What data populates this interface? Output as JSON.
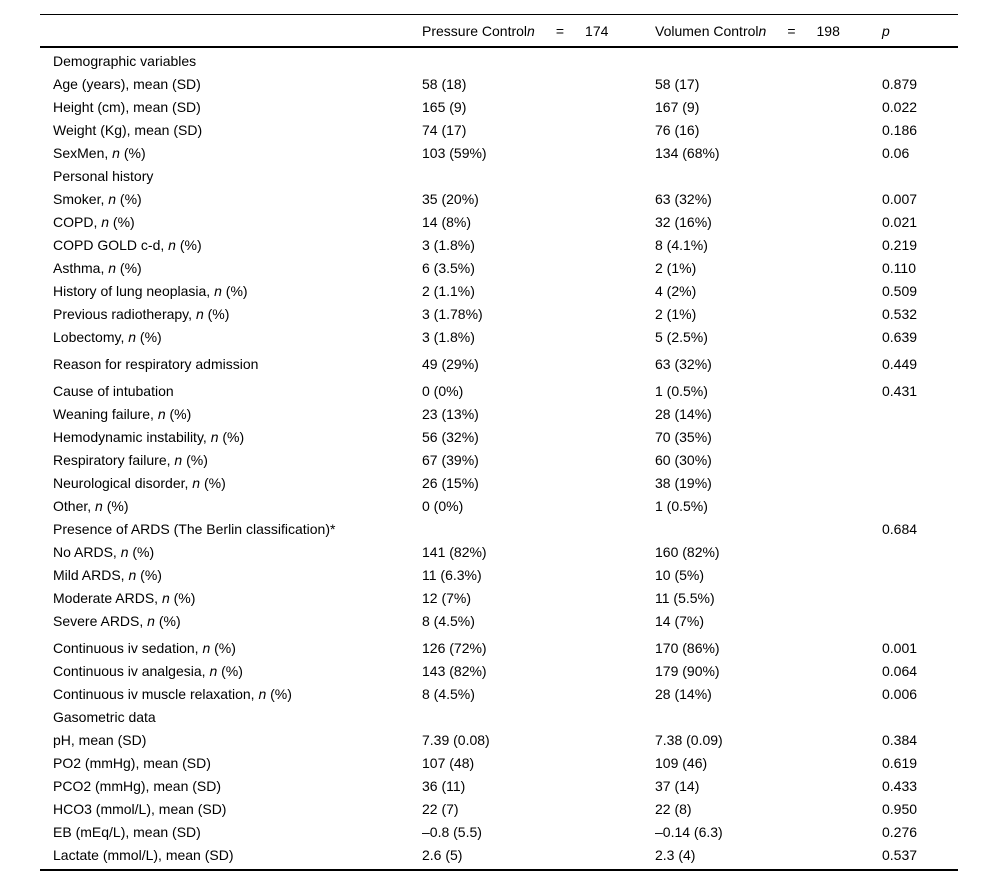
{
  "colors": {
    "background": "#ffffff",
    "text": "#000000",
    "rule": "#000000"
  },
  "table": {
    "header": {
      "pressure": {
        "name": "Pressure Control",
        "n": "n",
        "eq": "=",
        "count": "174"
      },
      "volumen": {
        "name": "Volumen Control",
        "n": "n",
        "eq": "=",
        "count": "198"
      },
      "p": "p"
    },
    "rows": [
      {
        "section": true,
        "label": "Demographic variables"
      },
      {
        "label": "Age (years), mean (SD)",
        "c1": "58 (18)",
        "c2": "58 (17)",
        "p": "0.879"
      },
      {
        "label": "Height (cm), mean (SD)",
        "c1": "165 (9)",
        "c2": "167 (9)",
        "p": "0.022"
      },
      {
        "label": "Weight (Kg), mean (SD)",
        "c1": "74 (17)",
        "c2": "76 (16)",
        "p": "0.186"
      },
      {
        "label": "SexMen, ",
        "label_it": "n",
        "label_post": " (%)",
        "c1": "103 (59%)",
        "c2": "134 (68%)",
        "p": "0.06"
      },
      {
        "section": true,
        "label": "Personal history"
      },
      {
        "label": "Smoker, ",
        "label_it": "n",
        "label_post": " (%)",
        "c1": "35 (20%)",
        "c2": "63 (32%)",
        "p": "0.007"
      },
      {
        "label": "COPD, ",
        "label_it": "n",
        "label_post": " (%)",
        "c1": "14 (8%)",
        "c2": "32 (16%)",
        "p": "0.021"
      },
      {
        "label": "COPD GOLD c-d, ",
        "label_it": "n",
        "label_post": " (%)",
        "c1": "3 (1.8%)",
        "c2": "8 (4.1%)",
        "p": "0.219"
      },
      {
        "label": "Asthma, ",
        "label_it": "n",
        "label_post": " (%)",
        "c1": "6 (3.5%)",
        "c2": "2 (1%)",
        "p": "0.110"
      },
      {
        "label": "History of lung neoplasia, ",
        "label_it": "n",
        "label_post": " (%)",
        "c1": "2 (1.1%)",
        "c2": "4 (2%)",
        "p": "0.509"
      },
      {
        "label": "Previous radiotherapy, ",
        "label_it": "n",
        "label_post": " (%)",
        "c1": "3 (1.78%)",
        "c2": "2 (1%)",
        "p": "0.532"
      },
      {
        "label": "Lobectomy, ",
        "label_it": "n",
        "label_post": " (%)",
        "c1": "3 (1.8%)",
        "c2": "5 (2.5%)",
        "p": "0.639"
      },
      {
        "gap": true,
        "label": "Reason for respiratory admission",
        "c1": "49 (29%)",
        "c2": "63 (32%)",
        "p": "0.449"
      },
      {
        "gap": true,
        "label": "Cause of intubation",
        "c1": "0 (0%)",
        "c2": "1 (0.5%)",
        "p": "0.431"
      },
      {
        "label": "Weaning failure, ",
        "label_it": "n",
        "label_post": " (%)",
        "c1": "23 (13%)",
        "c2": "28 (14%)"
      },
      {
        "label": "Hemodynamic instability, ",
        "label_it": "n",
        "label_post": " (%)",
        "c1": "56 (32%)",
        "c2": "70 (35%)"
      },
      {
        "label": "Respiratory failure, ",
        "label_it": "n",
        "label_post": " (%)",
        "c1": "67 (39%)",
        "c2": "60 (30%)"
      },
      {
        "label": "Neurological disorder, ",
        "label_it": "n",
        "label_post": " (%)",
        "c1": "26 (15%)",
        "c2": "38 (19%)"
      },
      {
        "label": "Other, ",
        "label_it": "n",
        "label_post": " (%)",
        "c1": "0 (0%)",
        "c2": "1 (0.5%)"
      },
      {
        "label": "Presence of ARDS (The Berlin classification)*",
        "p": "0.684"
      },
      {
        "label": "No ARDS, ",
        "label_it": "n",
        "label_post": " (%)",
        "c1": "141 (82%)",
        "c2": "160 (82%)"
      },
      {
        "label": "Mild ARDS, ",
        "label_it": "n",
        "label_post": " (%)",
        "c1": "11 (6.3%)",
        "c2": "10 (5%)"
      },
      {
        "label": "Moderate ARDS, ",
        "label_it": "n",
        "label_post": " (%)",
        "c1": "12 (7%)",
        "c2": "11 (5.5%)"
      },
      {
        "label": "Severe ARDS, ",
        "label_it": "n",
        "label_post": " (%)",
        "c1": "8 (4.5%)",
        "c2": "14 (7%)"
      },
      {
        "gap": true,
        "label": "Continuous iv sedation, ",
        "label_it": "n",
        "label_post": " (%)",
        "c1": "126 (72%)",
        "c2": "170 (86%)",
        "p": "0.001"
      },
      {
        "label": "Continuous iv analgesia, ",
        "label_it": "n",
        "label_post": " (%)",
        "c1": "143 (82%)",
        "c2": "179 (90%)",
        "p": "0.064"
      },
      {
        "label": "Continuous iv muscle relaxation, ",
        "label_it": "n",
        "label_post": " (%)",
        "c1": "8 (4.5%)",
        "c2": "28 (14%)",
        "p": "0.006"
      },
      {
        "section": true,
        "label": "Gasometric data"
      },
      {
        "label": "pH, mean (SD)",
        "c1": "7.39 (0.08)",
        "c2": "7.38 (0.09)",
        "p": "0.384"
      },
      {
        "label": "PO2 (mmHg), mean (SD)",
        "c1": "107 (48)",
        "c2": "109 (46)",
        "p": "0.619"
      },
      {
        "label": "PCO2 (mmHg), mean (SD)",
        "c1": "36 (11)",
        "c2": "37 (14)",
        "p": "0.433"
      },
      {
        "label": "HCO3 (mmol/L), mean (SD)",
        "c1": "22 (7)",
        "c2": "22 (8)",
        "p": "0.950"
      },
      {
        "label": "EB (mEq/L), mean (SD)",
        "c1": "–0.8 (5.5)",
        "c2": "–0.14 (6.3)",
        "p": "0.276"
      },
      {
        "label": "Lactate (mmol/L), mean (SD)",
        "c1": "2.6 (5)",
        "c2": "2.3 (4)",
        "p": "0.537"
      }
    ]
  }
}
